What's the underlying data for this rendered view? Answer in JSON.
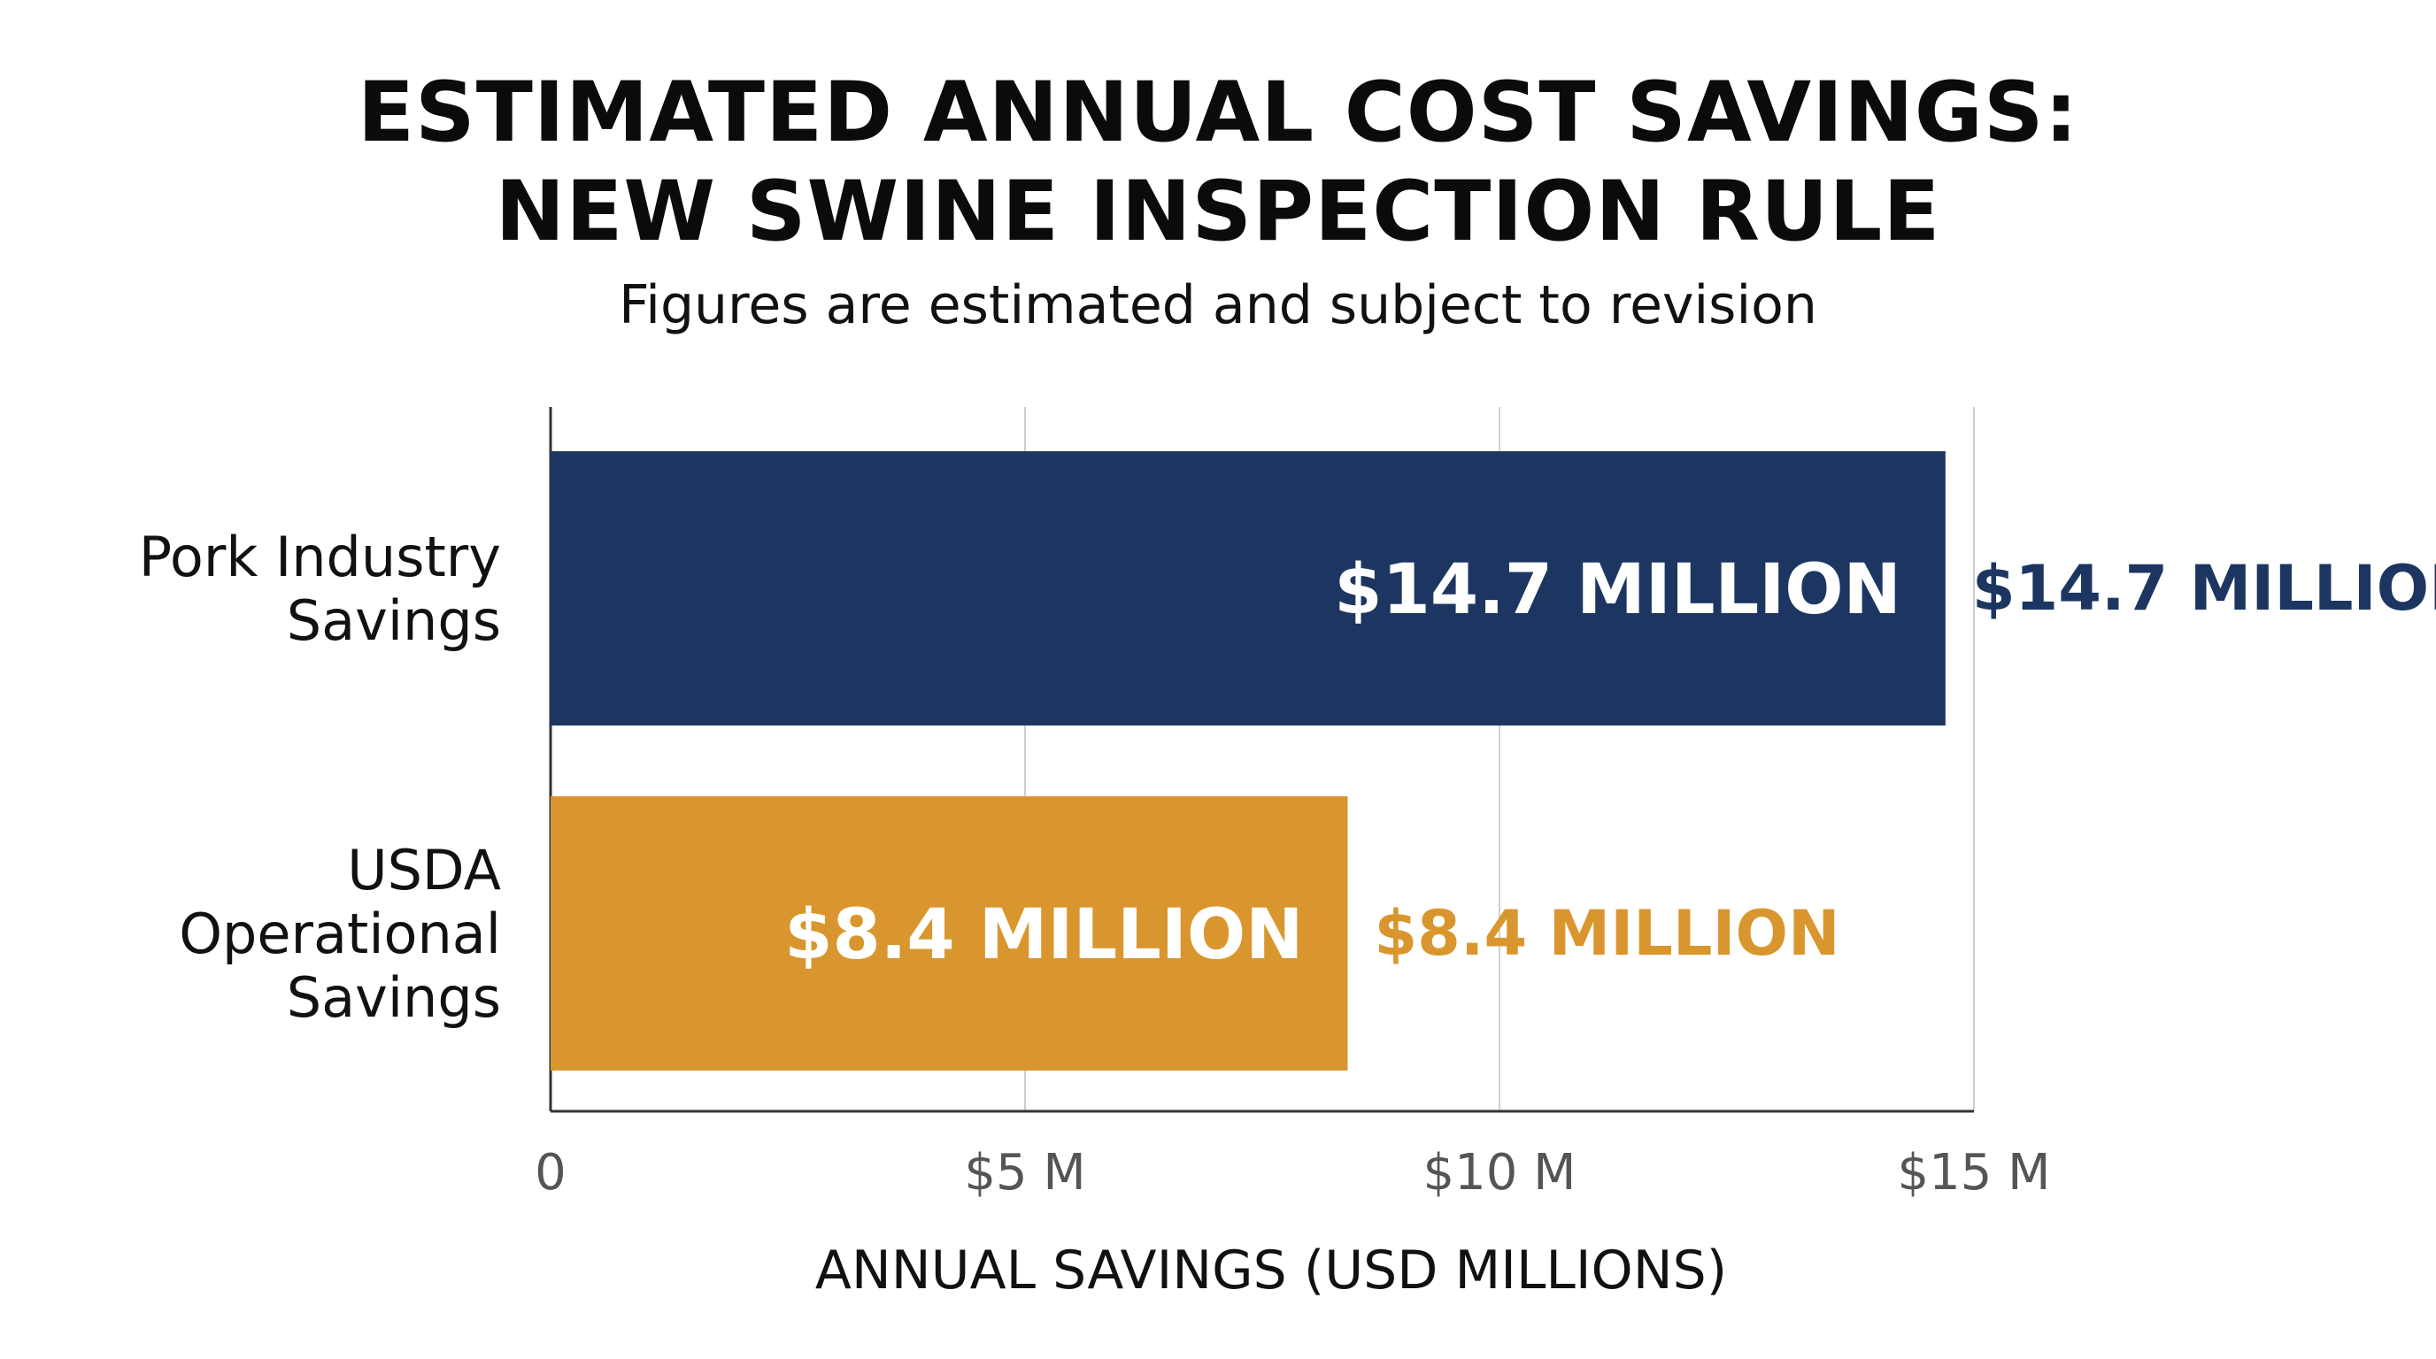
{
  "chart_data": {
    "type": "bar",
    "orientation": "horizontal",
    "title_line1": "ESTIMATED ANNUAL COST SAVINGS:",
    "title_line2": "NEW SWINE INSPECTION RULE",
    "subtitle": "Figures are estimated and subject to revision",
    "xlabel": "ANNUAL SAVINGS (USD MILLIONS)",
    "ylabel": "",
    "xlim": [
      0,
      15
    ],
    "x_ticks": [
      0,
      5,
      10,
      15
    ],
    "x_tick_labels": [
      "0",
      "$5 M",
      "$10 M",
      "$15 M"
    ],
    "grid": true,
    "categories": [
      [
        "Pork Industry",
        "Savings"
      ],
      [
        "USDA",
        "Operational",
        "Savings"
      ]
    ],
    "values": [
      14.7,
      8.4
    ],
    "data_labels": [
      "$14.7 MILLION",
      "$8.4 MILLION"
    ],
    "colors": [
      "#1c3661",
      "#d9962e"
    ]
  }
}
